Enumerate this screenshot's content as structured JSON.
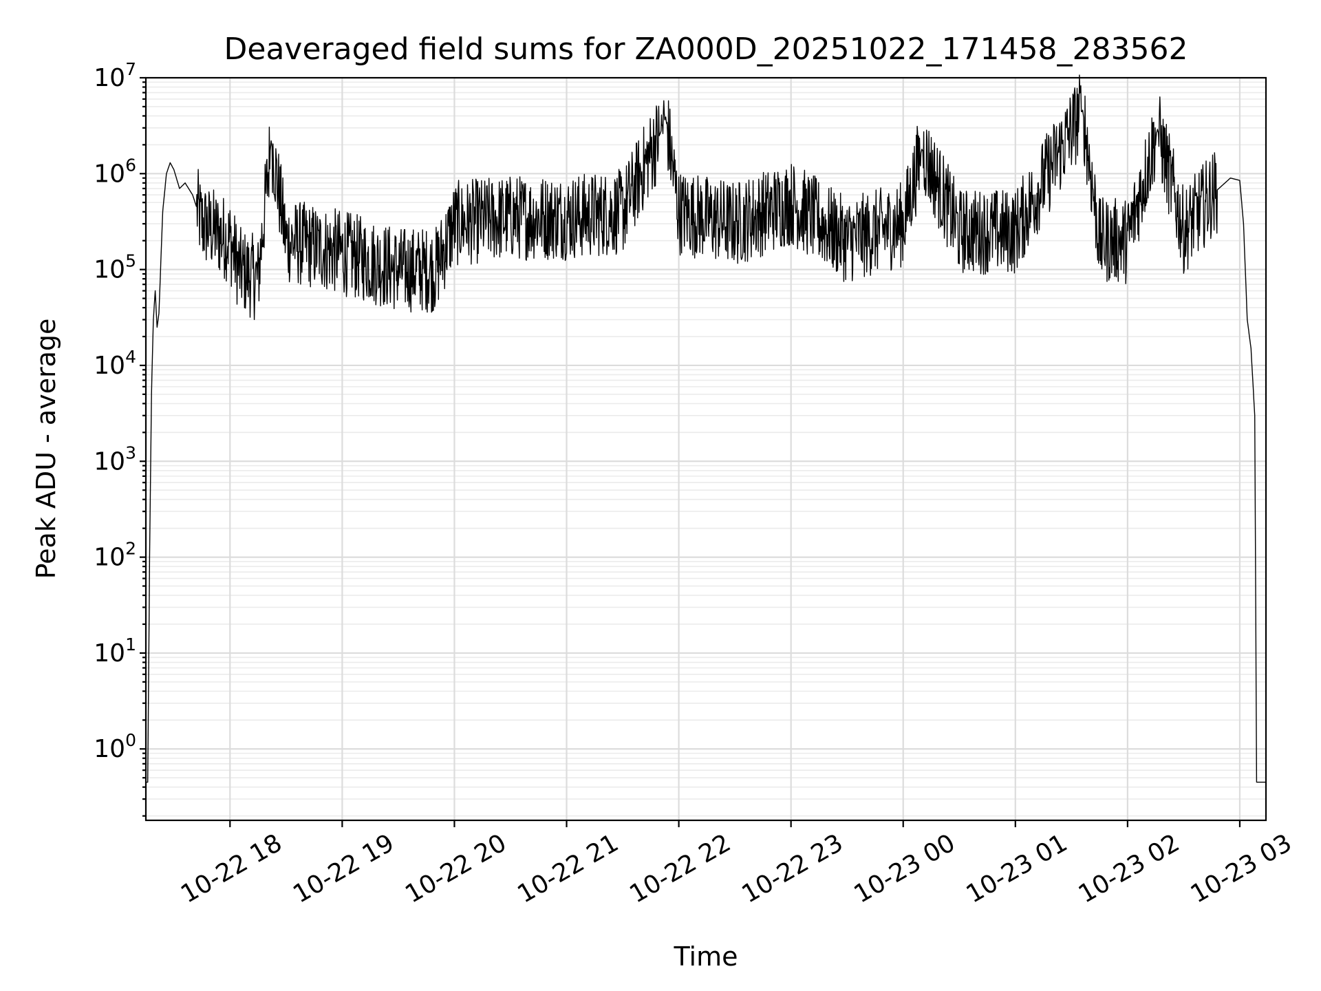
{
  "chart_data": {
    "type": "line",
    "title": "Deaveraged field sums for ZA000D_20251022_171458_283562",
    "xlabel": "Time",
    "ylabel": "Peak ADU - average",
    "y_scale": "log",
    "ylim": [
      0.18,
      10000000
    ],
    "xlim": [
      "2025-10-22 17:15",
      "2025-10-23 03:14"
    ],
    "grid": "both (major and minor)",
    "line_color": "#000000",
    "x_ticks": [
      {
        "value": "2025-10-22 18:00",
        "label": "10-22 18"
      },
      {
        "value": "2025-10-22 19:00",
        "label": "10-22 19"
      },
      {
        "value": "2025-10-22 20:00",
        "label": "10-22 20"
      },
      {
        "value": "2025-10-22 21:00",
        "label": "10-22 21"
      },
      {
        "value": "2025-10-22 22:00",
        "label": "10-22 22"
      },
      {
        "value": "2025-10-22 23:00",
        "label": "10-22 23"
      },
      {
        "value": "2025-10-23 00:00",
        "label": "10-23 00"
      },
      {
        "value": "2025-10-23 01:00",
        "label": "10-23 01"
      },
      {
        "value": "2025-10-23 02:00",
        "label": "10-23 02"
      },
      {
        "value": "2025-10-23 03:00",
        "label": "10-23 03"
      }
    ],
    "y_ticks": [
      {
        "value": 1,
        "base": "10",
        "exp": "0"
      },
      {
        "value": 10,
        "base": "10",
        "exp": "1"
      },
      {
        "value": 100,
        "base": "10",
        "exp": "2"
      },
      {
        "value": 1000,
        "base": "10",
        "exp": "3"
      },
      {
        "value": 10000,
        "base": "10",
        "exp": "4"
      },
      {
        "value": 100000,
        "base": "10",
        "exp": "5"
      },
      {
        "value": 1000000,
        "base": "10",
        "exp": "6"
      },
      {
        "value": 10000000,
        "base": "10",
        "exp": "7"
      }
    ],
    "series": [
      {
        "points": [
          [
            "2025-10-22 17:15",
            0.45
          ],
          [
            "2025-10-22 17:16",
            0.45
          ],
          [
            "2025-10-22 17:17",
            100
          ],
          [
            "2025-10-22 17:18",
            5000
          ],
          [
            "2025-10-22 17:19",
            30000
          ],
          [
            "2025-10-22 17:20",
            60000
          ],
          [
            "2025-10-22 17:21",
            25000
          ],
          [
            "2025-10-22 17:22",
            35000
          ],
          [
            "2025-10-22 17:24",
            400000
          ],
          [
            "2025-10-22 17:26",
            1000000
          ],
          [
            "2025-10-22 17:28",
            1300000
          ],
          [
            "2025-10-22 17:30",
            1100000
          ],
          [
            "2025-10-22 17:33",
            700000
          ],
          [
            "2025-10-22 17:36",
            800000
          ],
          [
            "2025-10-22 17:40",
            600000
          ],
          [
            "2025-10-22 17:45",
            300000
          ],
          [
            "2025-10-22 18:00",
            200000
          ],
          [
            "2025-10-22 18:05",
            100000
          ],
          [
            "2025-10-22 18:15",
            80000
          ],
          [
            "2025-10-22 18:22",
            2200000
          ],
          [
            "2025-10-22 18:30",
            200000
          ],
          [
            "2025-10-22 19:00",
            150000
          ],
          [
            "2025-10-22 19:30",
            100000
          ],
          [
            "2025-10-22 19:50",
            100000
          ],
          [
            "2025-10-22 20:00",
            300000
          ],
          [
            "2025-10-22 20:30",
            350000
          ],
          [
            "2025-10-22 21:00",
            350000
          ],
          [
            "2025-10-22 21:30",
            400000
          ],
          [
            "2025-10-22 21:50",
            2600000
          ],
          [
            "2025-10-22 21:53",
            3900000
          ],
          [
            "2025-10-22 22:00",
            400000
          ],
          [
            "2025-10-22 22:30",
            300000
          ],
          [
            "2025-10-22 23:00",
            500000
          ],
          [
            "2025-10-22 23:30",
            200000
          ],
          [
            "2025-10-23 00:00",
            300000
          ],
          [
            "2025-10-23 00:10",
            1800000
          ],
          [
            "2025-10-23 00:30",
            250000
          ],
          [
            "2025-10-23 01:00",
            250000
          ],
          [
            "2025-10-23 01:36",
            4600000
          ],
          [
            "2025-10-23 01:45",
            200000
          ],
          [
            "2025-10-23 02:00",
            200000
          ],
          [
            "2025-10-23 02:16",
            2900000
          ],
          [
            "2025-10-23 02:30",
            250000
          ],
          [
            "2025-10-23 02:45",
            600000
          ],
          [
            "2025-10-23 02:55",
            900000
          ],
          [
            "2025-10-23 03:00",
            850000
          ],
          [
            "2025-10-23 03:02",
            300000
          ],
          [
            "2025-10-23 03:04",
            30000
          ],
          [
            "2025-10-23 03:06",
            15000
          ],
          [
            "2025-10-23 03:08",
            3000
          ],
          [
            "2025-10-23 03:09",
            0.45
          ],
          [
            "2025-10-23 03:14",
            0.45
          ]
        ]
      }
    ]
  }
}
